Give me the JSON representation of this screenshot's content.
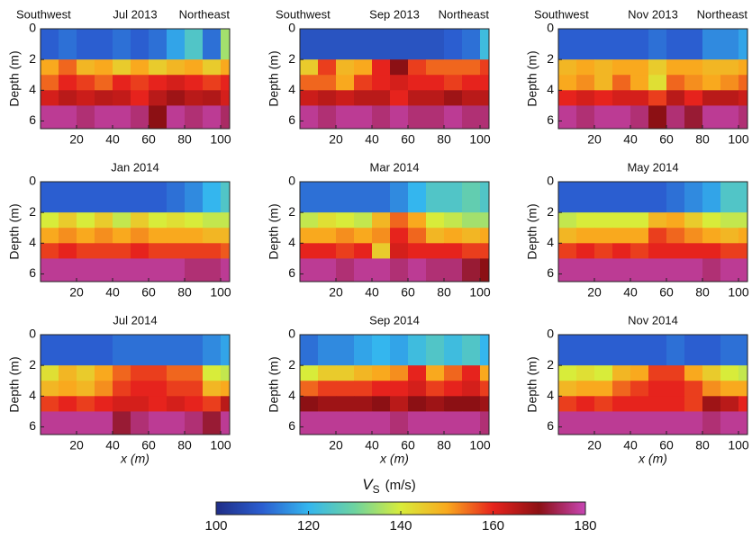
{
  "chart_data": [
    {
      "type": "heatmap",
      "title": "Jul 2013",
      "left_label": "Southwest",
      "right_label": "Northeast",
      "ylabel": "Depth (m)",
      "xlim": [
        0,
        105
      ],
      "xticks": [
        20,
        40,
        60,
        80,
        100
      ],
      "ylim": [
        0,
        6.5
      ],
      "yticks": [
        0,
        2,
        4,
        6
      ],
      "xbins": [
        0,
        10,
        20,
        30,
        40,
        50,
        60,
        70,
        80,
        90,
        100,
        105
      ],
      "ybins": [
        0,
        2,
        3,
        4,
        5,
        6.5
      ],
      "values": [
        [
          110,
          112,
          110,
          110,
          112,
          110,
          112,
          118,
          125,
          112,
          135
        ],
        [
          150,
          155,
          148,
          150,
          145,
          150,
          145,
          148,
          150,
          145,
          150
        ],
        [
          155,
          160,
          158,
          155,
          160,
          158,
          160,
          162,
          160,
          158,
          160
        ],
        [
          162,
          165,
          163,
          165,
          164,
          160,
          165,
          168,
          165,
          166,
          162
        ],
        [
          178,
          178,
          176,
          178,
          178,
          176,
          170,
          178,
          176,
          178,
          175
        ]
      ]
    },
    {
      "type": "heatmap",
      "title": "Sep 2013",
      "left_label": "Southwest",
      "right_label": "Northeast",
      "ylabel": "Depth (m)",
      "xlim": [
        0,
        105
      ],
      "xticks": [
        20,
        40,
        60,
        80,
        100
      ],
      "ylim": [
        0,
        6.5
      ],
      "yticks": [
        0,
        2,
        4,
        6
      ],
      "xbins": [
        0,
        10,
        20,
        30,
        40,
        50,
        60,
        70,
        80,
        90,
        100,
        105
      ],
      "ybins": [
        0,
        2,
        3,
        4,
        5,
        6.5
      ],
      "values": [
        [
          108,
          108,
          108,
          108,
          108,
          108,
          108,
          108,
          110,
          112,
          122
        ],
        [
          145,
          158,
          148,
          150,
          160,
          170,
          158,
          155,
          155,
          155,
          158
        ],
        [
          155,
          155,
          150,
          158,
          160,
          162,
          160,
          160,
          158,
          160,
          160
        ],
        [
          163,
          165,
          163,
          165,
          165,
          160,
          165,
          165,
          168,
          165,
          165
        ],
        [
          178,
          176,
          178,
          178,
          176,
          178,
          176,
          176,
          178,
          176,
          176
        ]
      ]
    },
    {
      "type": "heatmap",
      "title": "Nov 2013",
      "left_label": "Southwest",
      "right_label": "Northeast",
      "ylabel": "Depth (m)",
      "xlim": [
        0,
        105
      ],
      "xticks": [
        20,
        40,
        60,
        80,
        100
      ],
      "ylim": [
        0,
        6.5
      ],
      "yticks": [
        0,
        2,
        4,
        6
      ],
      "xbins": [
        0,
        10,
        20,
        30,
        40,
        50,
        60,
        70,
        80,
        90,
        100,
        105
      ],
      "ybins": [
        0,
        2,
        3,
        4,
        5,
        6.5
      ],
      "values": [
        [
          110,
          110,
          110,
          110,
          110,
          112,
          110,
          110,
          115,
          115,
          118
        ],
        [
          148,
          150,
          148,
          150,
          150,
          145,
          150,
          150,
          148,
          148,
          150
        ],
        [
          150,
          152,
          148,
          155,
          150,
          142,
          155,
          152,
          150,
          152,
          155
        ],
        [
          160,
          162,
          160,
          162,
          162,
          158,
          165,
          160,
          165,
          165,
          163
        ],
        [
          178,
          176,
          178,
          178,
          176,
          170,
          176,
          172,
          178,
          178,
          176
        ]
      ]
    },
    {
      "type": "heatmap",
      "title": "Jan 2014",
      "ylabel": "Depth (m)",
      "xlim": [
        0,
        105
      ],
      "xticks": [
        20,
        40,
        60,
        80,
        100
      ],
      "ylim": [
        0,
        6.5
      ],
      "yticks": [
        0,
        2,
        4,
        6
      ],
      "xbins": [
        0,
        10,
        20,
        30,
        40,
        50,
        60,
        70,
        80,
        90,
        100,
        105
      ],
      "ybins": [
        0,
        2,
        3,
        4,
        5,
        6.5
      ],
      "values": [
        [
          110,
          110,
          110,
          110,
          110,
          110,
          110,
          112,
          115,
          120,
          125
        ],
        [
          140,
          145,
          140,
          145,
          138,
          145,
          140,
          142,
          140,
          138,
          138
        ],
        [
          150,
          152,
          150,
          152,
          150,
          152,
          150,
          150,
          150,
          148,
          148
        ],
        [
          158,
          160,
          158,
          158,
          158,
          160,
          158,
          158,
          158,
          158,
          156
        ],
        [
          178,
          178,
          178,
          178,
          178,
          178,
          178,
          178,
          176,
          176,
          178
        ]
      ]
    },
    {
      "type": "heatmap",
      "title": "Mar 2014",
      "ylabel": "Depth (m)",
      "xlim": [
        0,
        105
      ],
      "xticks": [
        20,
        40,
        60,
        80,
        100
      ],
      "ylim": [
        0,
        6.5
      ],
      "yticks": [
        0,
        2,
        4,
        6
      ],
      "xbins": [
        0,
        10,
        20,
        30,
        40,
        50,
        60,
        70,
        80,
        90,
        100,
        105
      ],
      "ybins": [
        0,
        2,
        3,
        4,
        5,
        6.5
      ],
      "values": [
        [
          112,
          112,
          112,
          112,
          112,
          115,
          120,
          125,
          125,
          128,
          125
        ],
        [
          138,
          142,
          140,
          138,
          148,
          155,
          150,
          140,
          138,
          135,
          135
        ],
        [
          150,
          150,
          152,
          150,
          152,
          160,
          155,
          148,
          150,
          148,
          150
        ],
        [
          160,
          160,
          158,
          160,
          145,
          162,
          160,
          160,
          160,
          158,
          158
        ],
        [
          178,
          178,
          176,
          178,
          178,
          176,
          178,
          176,
          176,
          172,
          170
        ]
      ]
    },
    {
      "type": "heatmap",
      "title": "May 2014",
      "ylabel": "Depth (m)",
      "xlim": [
        0,
        105
      ],
      "xticks": [
        20,
        40,
        60,
        80,
        100
      ],
      "ylim": [
        0,
        6.5
      ],
      "yticks": [
        0,
        2,
        4,
        6
      ],
      "xbins": [
        0,
        10,
        20,
        30,
        40,
        50,
        60,
        70,
        80,
        90,
        100,
        105
      ],
      "ybins": [
        0,
        2,
        3,
        4,
        5,
        6.5
      ],
      "values": [
        [
          110,
          110,
          110,
          110,
          110,
          110,
          112,
          115,
          118,
          125,
          125
        ],
        [
          138,
          140,
          140,
          140,
          140,
          148,
          150,
          145,
          140,
          138,
          138
        ],
        [
          148,
          150,
          150,
          150,
          150,
          158,
          155,
          152,
          150,
          148,
          150
        ],
        [
          158,
          160,
          158,
          160,
          158,
          160,
          160,
          160,
          160,
          158,
          158
        ],
        [
          178,
          178,
          178,
          178,
          178,
          178,
          178,
          178,
          176,
          178,
          178
        ]
      ]
    },
    {
      "type": "heatmap",
      "title": "Jul 2014",
      "ylabel": "Depth (m)",
      "xlabel": "x (m)",
      "xlim": [
        0,
        105
      ],
      "xticks": [
        20,
        40,
        60,
        80,
        100
      ],
      "ylim": [
        0,
        6.5
      ],
      "yticks": [
        0,
        2,
        4,
        6
      ],
      "xbins": [
        0,
        10,
        20,
        30,
        40,
        50,
        60,
        70,
        80,
        90,
        100,
        105
      ],
      "ybins": [
        0,
        2,
        3,
        4,
        5,
        6.5
      ],
      "values": [
        [
          110,
          110,
          110,
          110,
          112,
          112,
          112,
          112,
          112,
          115,
          118
        ],
        [
          142,
          148,
          145,
          150,
          155,
          158,
          158,
          155,
          155,
          140,
          138
        ],
        [
          148,
          150,
          148,
          152,
          158,
          160,
          160,
          158,
          158,
          148,
          150
        ],
        [
          158,
          160,
          158,
          160,
          162,
          162,
          160,
          162,
          160,
          158,
          165
        ],
        [
          178,
          178,
          178,
          178,
          172,
          176,
          178,
          178,
          176,
          172,
          178
        ]
      ]
    },
    {
      "type": "heatmap",
      "title": "Sep 2014",
      "ylabel": "Depth (m)",
      "xlabel": "x (m)",
      "xlim": [
        0,
        105
      ],
      "xticks": [
        20,
        40,
        60,
        80,
        100
      ],
      "ylim": [
        0,
        6.5
      ],
      "yticks": [
        0,
        2,
        4,
        6
      ],
      "xbins": [
        0,
        10,
        20,
        30,
        40,
        50,
        60,
        70,
        80,
        90,
        100,
        105
      ],
      "ybins": [
        0,
        2,
        3,
        4,
        5,
        6.5
      ],
      "values": [
        [
          112,
          115,
          115,
          118,
          120,
          118,
          122,
          125,
          122,
          125,
          120
        ],
        [
          140,
          145,
          145,
          148,
          150,
          152,
          160,
          150,
          155,
          160,
          150
        ],
        [
          155,
          158,
          158,
          158,
          160,
          160,
          162,
          158,
          160,
          162,
          158
        ],
        [
          170,
          168,
          168,
          168,
          170,
          165,
          170,
          168,
          170,
          170,
          168
        ],
        [
          178,
          178,
          178,
          178,
          178,
          176,
          178,
          178,
          178,
          178,
          176
        ]
      ]
    },
    {
      "type": "heatmap",
      "title": "Nov 2014",
      "ylabel": "Depth (m)",
      "xlabel": "x (m)",
      "xlim": [
        0,
        105
      ],
      "xticks": [
        20,
        40,
        60,
        80,
        100
      ],
      "ylim": [
        0,
        6.5
      ],
      "yticks": [
        0,
        2,
        4,
        6
      ],
      "xbins": [
        0,
        10,
        20,
        30,
        40,
        50,
        60,
        70,
        80,
        90,
        100,
        105
      ],
      "ybins": [
        0,
        2,
        3,
        4,
        5,
        6.5
      ],
      "values": [
        [
          110,
          110,
          110,
          110,
          110,
          110,
          112,
          110,
          110,
          112,
          112
        ],
        [
          140,
          142,
          140,
          148,
          150,
          158,
          158,
          150,
          145,
          140,
          138
        ],
        [
          148,
          150,
          150,
          155,
          158,
          160,
          160,
          158,
          152,
          150,
          150
        ],
        [
          158,
          160,
          158,
          160,
          160,
          160,
          160,
          158,
          168,
          165,
          160
        ],
        [
          178,
          178,
          178,
          178,
          178,
          178,
          178,
          178,
          176,
          178,
          178
        ]
      ]
    },
    {
      "type": "colorbar",
      "label_main": "V",
      "label_sub": "S",
      "label_unit": "(m/s)",
      "lim": [
        100,
        180
      ],
      "ticks": [
        100,
        120,
        140,
        160,
        180
      ],
      "colors": [
        "#1f2d86",
        "#2b5ed0",
        "#34b6ee",
        "#6dd3a0",
        "#d8ec3a",
        "#f9a91e",
        "#e6231d",
        "#8c1014",
        "#c846b4"
      ]
    }
  ]
}
